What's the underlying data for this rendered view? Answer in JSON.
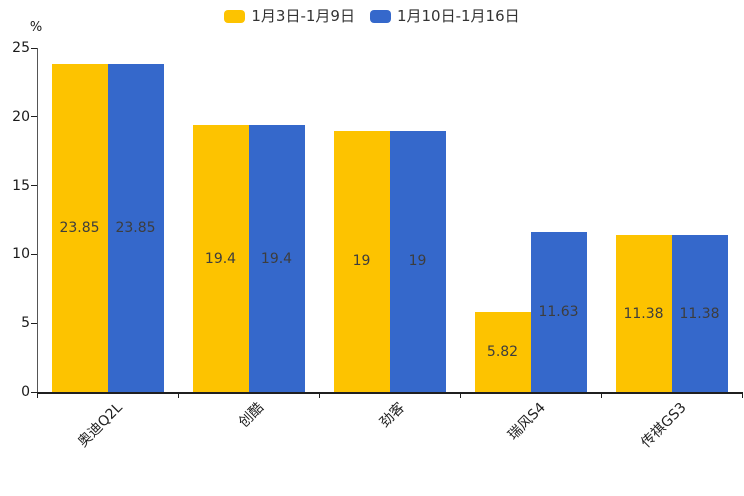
{
  "chart_data": {
    "type": "bar",
    "categories": [
      "奥迪Q2L",
      "创酷",
      "劲客",
      "瑞风S4",
      "传祺GS3"
    ],
    "series": [
      {
        "name": "1月3日-1月9日",
        "color": "#FDC300",
        "values": [
          23.85,
          19.4,
          19,
          5.82,
          11.38
        ]
      },
      {
        "name": "1月10日-1月16日",
        "color": "#3568CB",
        "values": [
          23.85,
          19.4,
          19,
          11.63,
          11.38
        ]
      }
    ],
    "title": "",
    "xlabel": "",
    "ylabel": "%",
    "ylim": [
      0,
      25
    ],
    "yticks": [
      0,
      5,
      10,
      15,
      20,
      25
    ],
    "grid": false,
    "legend_position": "top-center",
    "xtick_rotation": 45,
    "value_labels_inside_bars": true
  },
  "colors": {
    "axis_line": "#1f1f1f",
    "tick_text": "#1a1a1a",
    "value_text": "#3d3d3d",
    "legend_text": "#333333",
    "background": "#ffffff"
  }
}
